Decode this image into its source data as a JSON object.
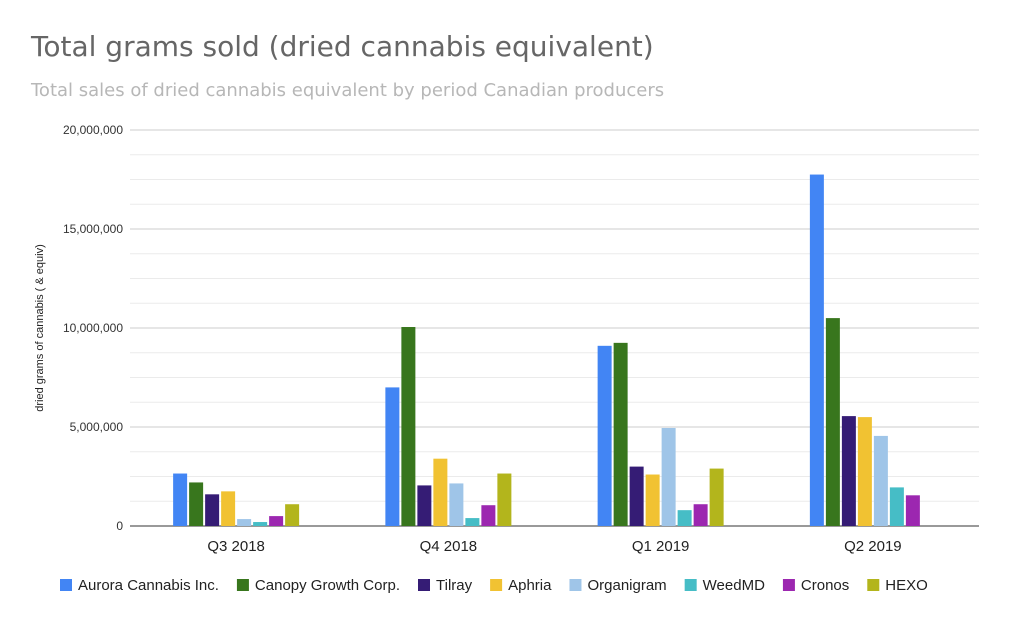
{
  "chart_data": {
    "type": "bar",
    "title": "Total grams sold (dried cannabis equivalent)",
    "subtitle": "Total sales of dried cannabis equivalent by period Canadian producers",
    "xlabel": "",
    "ylabel": "dried grams of cannabis ( & equiv)",
    "ylim": [
      0,
      20000000
    ],
    "yticks": [
      0,
      5000000,
      10000000,
      15000000,
      20000000
    ],
    "ytick_labels": [
      "0",
      "5,000,000",
      "10,000,000",
      "15,000,000",
      "20,000,000"
    ],
    "grid": true,
    "legend_position": "bottom",
    "categories": [
      "Q3 2018",
      "Q4 2018",
      "Q1 2019",
      "Q2 2019"
    ],
    "series": [
      {
        "name": "Aurora Cannabis Inc.",
        "color": "#4285f4",
        "values": [
          2650000,
          7000000,
          9100000,
          17750000
        ]
      },
      {
        "name": "Canopy Growth Corp.",
        "color": "#38761d",
        "values": [
          2200000,
          10050000,
          9250000,
          10500000
        ]
      },
      {
        "name": "Tilray",
        "color": "#351c75",
        "values": [
          1600000,
          2050000,
          3000000,
          5550000
        ]
      },
      {
        "name": "Aphria",
        "color": "#f1c232",
        "values": [
          1750000,
          3400000,
          2600000,
          5500000
        ]
      },
      {
        "name": "Organigram",
        "color": "#9fc5e8",
        "values": [
          350000,
          2150000,
          4950000,
          4550000
        ]
      },
      {
        "name": "WeedMD",
        "color": "#46bdc6",
        "values": [
          200000,
          400000,
          800000,
          1950000
        ]
      },
      {
        "name": "Cronos",
        "color": "#9c27b0",
        "values": [
          500000,
          1050000,
          1100000,
          1550000
        ]
      },
      {
        "name": "HEXO",
        "color": "#b3b51c",
        "values": [
          1100000,
          2650000,
          2900000,
          0
        ]
      }
    ]
  }
}
